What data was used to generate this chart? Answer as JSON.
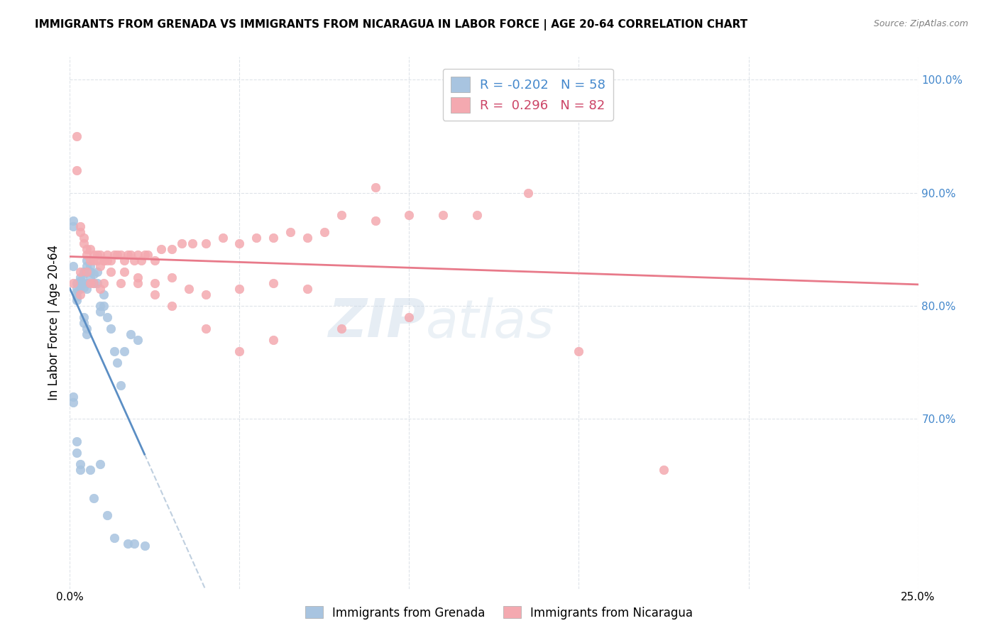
{
  "title": "IMMIGRANTS FROM GRENADA VS IMMIGRANTS FROM NICARAGUA IN LABOR FORCE | AGE 20-64 CORRELATION CHART",
  "source": "Source: ZipAtlas.com",
  "ylabel": "In Labor Force | Age 20-64",
  "x_min": 0.0,
  "x_max": 0.25,
  "y_min": 0.55,
  "y_max": 1.02,
  "x_ticks": [
    0.0,
    0.05,
    0.1,
    0.15,
    0.2,
    0.25
  ],
  "x_tick_labels": [
    "0.0%",
    "",
    "",
    "",
    "",
    "25.0%"
  ],
  "y_ticks": [
    0.7,
    0.8,
    0.9,
    1.0
  ],
  "y_tick_labels": [
    "70.0%",
    "80.0%",
    "90.0%",
    "100.0%"
  ],
  "grenada_color": "#a8c4e0",
  "nicaragua_color": "#f4a9b0",
  "grenada_line_color": "#5b8ec4",
  "nicaragua_line_color": "#e87a8a",
  "dashed_line_color": "#b0c4d8",
  "watermark_zip": "ZIP",
  "watermark_atlas": "atlas",
  "legend_R_grenada": "-0.202",
  "legend_N_grenada": "58",
  "legend_R_nicaragua": "0.296",
  "legend_N_nicaragua": "82",
  "grenada_x": [
    0.001,
    0.001,
    0.001,
    0.002,
    0.002,
    0.002,
    0.002,
    0.002,
    0.003,
    0.003,
    0.003,
    0.003,
    0.003,
    0.004,
    0.004,
    0.004,
    0.004,
    0.005,
    0.005,
    0.005,
    0.005,
    0.006,
    0.006,
    0.006,
    0.007,
    0.007,
    0.008,
    0.008,
    0.009,
    0.009,
    0.01,
    0.01,
    0.011,
    0.012,
    0.013,
    0.014,
    0.015,
    0.016,
    0.018,
    0.02,
    0.001,
    0.001,
    0.002,
    0.002,
    0.003,
    0.003,
    0.004,
    0.004,
    0.005,
    0.005,
    0.006,
    0.007,
    0.009,
    0.011,
    0.013,
    0.017,
    0.019,
    0.022
  ],
  "grenada_y": [
    0.875,
    0.87,
    0.835,
    0.82,
    0.815,
    0.812,
    0.808,
    0.805,
    0.825,
    0.822,
    0.82,
    0.818,
    0.815,
    0.83,
    0.828,
    0.82,
    0.816,
    0.84,
    0.835,
    0.82,
    0.815,
    0.835,
    0.83,
    0.825,
    0.828,
    0.82,
    0.83,
    0.82,
    0.8,
    0.795,
    0.81,
    0.8,
    0.79,
    0.78,
    0.76,
    0.75,
    0.73,
    0.76,
    0.775,
    0.77,
    0.72,
    0.715,
    0.68,
    0.67,
    0.66,
    0.655,
    0.79,
    0.785,
    0.78,
    0.775,
    0.655,
    0.63,
    0.66,
    0.615,
    0.595,
    0.59,
    0.59,
    0.588
  ],
  "nicaragua_x": [
    0.001,
    0.002,
    0.002,
    0.003,
    0.003,
    0.004,
    0.004,
    0.005,
    0.005,
    0.006,
    0.006,
    0.007,
    0.007,
    0.008,
    0.008,
    0.009,
    0.009,
    0.01,
    0.01,
    0.011,
    0.011,
    0.012,
    0.013,
    0.014,
    0.015,
    0.016,
    0.017,
    0.018,
    0.019,
    0.02,
    0.021,
    0.022,
    0.023,
    0.025,
    0.027,
    0.03,
    0.033,
    0.036,
    0.04,
    0.045,
    0.05,
    0.055,
    0.06,
    0.065,
    0.07,
    0.075,
    0.08,
    0.09,
    0.1,
    0.11,
    0.12,
    0.003,
    0.005,
    0.007,
    0.01,
    0.015,
    0.02,
    0.025,
    0.03,
    0.04,
    0.05,
    0.06,
    0.08,
    0.1,
    0.003,
    0.006,
    0.009,
    0.012,
    0.016,
    0.02,
    0.025,
    0.03,
    0.035,
    0.04,
    0.05,
    0.06,
    0.07,
    0.09,
    0.115,
    0.135,
    0.15,
    0.175
  ],
  "nicaragua_y": [
    0.82,
    0.95,
    0.92,
    0.87,
    0.865,
    0.86,
    0.855,
    0.85,
    0.845,
    0.85,
    0.84,
    0.845,
    0.84,
    0.845,
    0.84,
    0.835,
    0.845,
    0.84,
    0.84,
    0.84,
    0.845,
    0.84,
    0.845,
    0.845,
    0.845,
    0.84,
    0.845,
    0.845,
    0.84,
    0.845,
    0.84,
    0.845,
    0.845,
    0.84,
    0.85,
    0.85,
    0.855,
    0.855,
    0.855,
    0.86,
    0.855,
    0.86,
    0.86,
    0.865,
    0.86,
    0.865,
    0.88,
    0.875,
    0.88,
    0.88,
    0.88,
    0.83,
    0.83,
    0.82,
    0.82,
    0.82,
    0.82,
    0.81,
    0.8,
    0.78,
    0.76,
    0.77,
    0.78,
    0.79,
    0.81,
    0.82,
    0.815,
    0.83,
    0.83,
    0.825,
    0.82,
    0.825,
    0.815,
    0.81,
    0.815,
    0.82,
    0.815,
    0.905,
    1.0,
    0.9,
    0.76,
    0.655
  ]
}
